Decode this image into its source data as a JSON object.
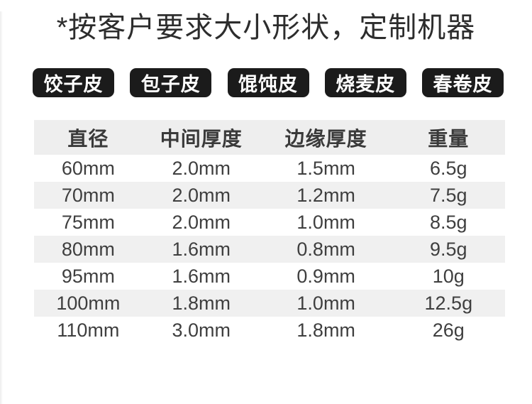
{
  "page": {
    "title": "*按客户要求大小形状，定制机器"
  },
  "tags": [
    {
      "label": "饺子皮"
    },
    {
      "label": "包子皮"
    },
    {
      "label": "馄饨皮"
    },
    {
      "label": "烧麦皮"
    },
    {
      "label": "春卷皮"
    }
  ],
  "spec_table": {
    "headers": [
      "直径",
      "中间厚度",
      "边缘厚度",
      "重量"
    ],
    "rows": [
      [
        "60mm",
        "2.0mm",
        "1.5mm",
        "6.5g"
      ],
      [
        "70mm",
        "2.0mm",
        "1.2mm",
        "7.5g"
      ],
      [
        "75mm",
        "2.0mm",
        "1.0mm",
        "8.5g"
      ],
      [
        "80mm",
        "1.6mm",
        "0.8mm",
        "9.5g"
      ],
      [
        "95mm",
        "1.6mm",
        "0.9mm",
        "10g"
      ],
      [
        "100mm",
        "1.8mm",
        "1.0mm",
        "12.5g"
      ],
      [
        "110mm",
        "3.0mm",
        "1.8mm",
        "26g"
      ]
    ]
  },
  "colors": {
    "tag_bg": "#1b1b1b",
    "tag_text": "#ffffff",
    "header_bg": "#eeeeee",
    "row_alt_bg": "#f0f0f0",
    "text_dark": "#2d2d2d",
    "table_text": "#3f3f3f"
  }
}
